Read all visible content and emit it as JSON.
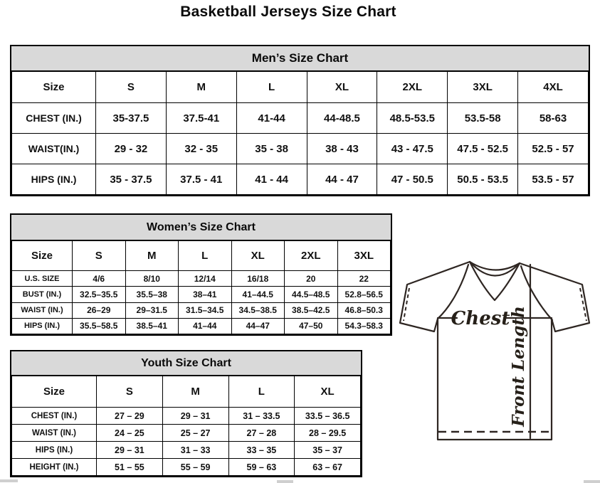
{
  "page": {
    "title": "Basketball Jerseys Size Chart"
  },
  "sections": {
    "men": {
      "title": "Men’s Size Chart",
      "corner": "Size",
      "columns": [
        "S",
        "M",
        "L",
        "XL",
        "2XL",
        "3XL",
        "4XL"
      ],
      "rows": [
        {
          "label": "CHEST (IN.)",
          "values": [
            "35-37.5",
            "37.5-41",
            "41-44",
            "44-48.5",
            "48.5-53.5",
            "53.5-58",
            "58-63"
          ]
        },
        {
          "label": "WAIST(IN.)",
          "values": [
            "29 - 32",
            "32 - 35",
            "35 - 38",
            "38 - 43",
            "43 - 47.5",
            "47.5 - 52.5",
            "52.5 - 57"
          ]
        },
        {
          "label": "HIPS (IN.)",
          "values": [
            "35 - 37.5",
            "37.5 - 41",
            "41 - 44",
            "44 - 47",
            "47 - 50.5",
            "50.5 - 53.5",
            "53.5 - 57"
          ]
        }
      ]
    },
    "women": {
      "title": "Women’s Size Chart",
      "corner": "Size",
      "columns": [
        "S",
        "M",
        "L",
        "XL",
        "2XL",
        "3XL"
      ],
      "rows": [
        {
          "label": "U.S. SIZE",
          "values": [
            "4/6",
            "8/10",
            "12/14",
            "16/18",
            "20",
            "22"
          ]
        },
        {
          "label": "BUST (IN.)",
          "values": [
            "32.5–35.5",
            "35.5–38",
            "38–41",
            "41–44.5",
            "44.5–48.5",
            "52.8–56.5"
          ]
        },
        {
          "label": "WAIST (IN.)",
          "values": [
            "26–29",
            "29–31.5",
            "31.5–34.5",
            "34.5–38.5",
            "38.5–42.5",
            "46.8–50.3"
          ]
        },
        {
          "label": "HIPS (IN.)",
          "values": [
            "35.5–58.5",
            "38.5–41",
            "41–44",
            "44–47",
            "47–50",
            "54.3–58.3"
          ]
        }
      ]
    },
    "youth": {
      "title": "Youth Size Chart",
      "corner": "Size",
      "columns": [
        "S",
        "M",
        "L",
        "XL"
      ],
      "rows": [
        {
          "label": "CHEST (IN.)",
          "values": [
            "27 – 29",
            "29 – 31",
            "31 – 33.5",
            "33.5 – 36.5"
          ]
        },
        {
          "label": "WAIST (IN.)",
          "values": [
            "24 – 25",
            "25 – 27",
            "27 – 28",
            "28 – 29.5"
          ]
        },
        {
          "label": "HIPS (IN.)",
          "values": [
            "29 – 31",
            "31 – 33",
            "33 – 35",
            "35 – 37"
          ]
        },
        {
          "label": "HEIGHT (IN.)",
          "values": [
            "51 – 55",
            "55 – 59",
            "59 – 63",
            "63 – 67"
          ]
        }
      ]
    }
  },
  "diagram": {
    "chest_label": "Chest",
    "front_length_label": "Front Length"
  },
  "colors": {
    "header_bg": "#d9d9d9",
    "border_color": "#000000",
    "diagram_stroke": "#2e2622"
  }
}
